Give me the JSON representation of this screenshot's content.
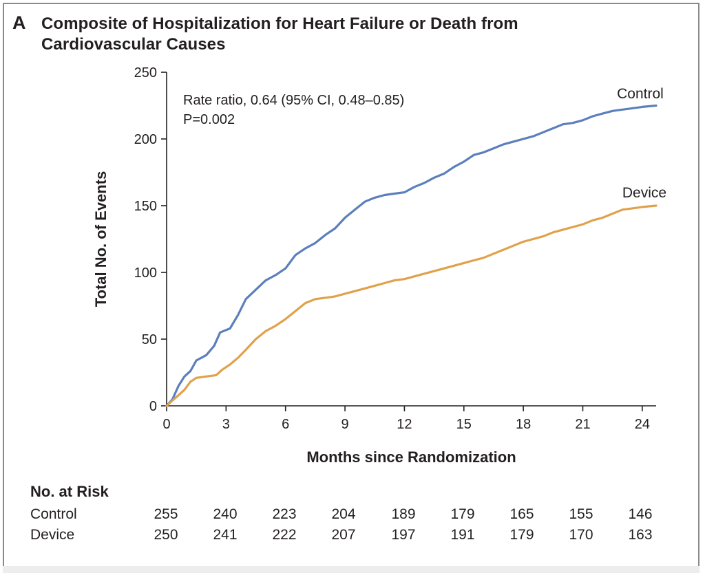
{
  "panel_label": "A",
  "chart_data": {
    "type": "line",
    "title": "Composite of Hospitalization for Heart Failure or Death from Cardiovascular Causes",
    "xlabel": "Months since Randomization",
    "ylabel": "Total No. of Events",
    "xlim": [
      0,
      24.7
    ],
    "ylim": [
      0,
      250
    ],
    "x_ticks": [
      0,
      3,
      6,
      9,
      12,
      15,
      18,
      21,
      24
    ],
    "y_ticks": [
      0,
      50,
      100,
      150,
      200,
      250
    ],
    "grid": false,
    "annotation_lines": [
      "Rate ratio, 0.64 (95% CI, 0.48–0.85)",
      "P=0.002"
    ],
    "series": [
      {
        "name": "Control",
        "color": "#5b7fbd",
        "points": [
          [
            0,
            0
          ],
          [
            0.3,
            5
          ],
          [
            0.6,
            15
          ],
          [
            0.9,
            22
          ],
          [
            1.2,
            26
          ],
          [
            1.5,
            34
          ],
          [
            2.0,
            38
          ],
          [
            2.4,
            45
          ],
          [
            2.7,
            55
          ],
          [
            3.2,
            58
          ],
          [
            3.6,
            68
          ],
          [
            4.0,
            80
          ],
          [
            4.5,
            87
          ],
          [
            5.0,
            94
          ],
          [
            5.5,
            98
          ],
          [
            6.0,
            103
          ],
          [
            6.5,
            113
          ],
          [
            7.0,
            118
          ],
          [
            7.5,
            122
          ],
          [
            8.0,
            128
          ],
          [
            8.5,
            133
          ],
          [
            9.0,
            141
          ],
          [
            9.5,
            147
          ],
          [
            10.0,
            153
          ],
          [
            10.5,
            156
          ],
          [
            11.0,
            158
          ],
          [
            11.5,
            159
          ],
          [
            12.0,
            160
          ],
          [
            12.5,
            164
          ],
          [
            13.0,
            167
          ],
          [
            13.5,
            171
          ],
          [
            14.0,
            174
          ],
          [
            14.5,
            179
          ],
          [
            15.0,
            183
          ],
          [
            15.5,
            188
          ],
          [
            16.0,
            190
          ],
          [
            16.5,
            193
          ],
          [
            17.0,
            196
          ],
          [
            17.5,
            198
          ],
          [
            18.0,
            200
          ],
          [
            18.5,
            202
          ],
          [
            19.0,
            205
          ],
          [
            19.5,
            208
          ],
          [
            20.0,
            211
          ],
          [
            20.5,
            212
          ],
          [
            21.0,
            214
          ],
          [
            21.5,
            217
          ],
          [
            22.0,
            219
          ],
          [
            22.5,
            221
          ],
          [
            23.0,
            222
          ],
          [
            23.5,
            223
          ],
          [
            24.0,
            224
          ],
          [
            24.7,
            225
          ]
        ]
      },
      {
        "name": "Device",
        "color": "#e0a14a",
        "points": [
          [
            0,
            0
          ],
          [
            0.3,
            4
          ],
          [
            0.6,
            8
          ],
          [
            0.9,
            12
          ],
          [
            1.2,
            18
          ],
          [
            1.5,
            21
          ],
          [
            2.0,
            22
          ],
          [
            2.5,
            23
          ],
          [
            2.8,
            27
          ],
          [
            3.2,
            31
          ],
          [
            3.6,
            36
          ],
          [
            4.0,
            42
          ],
          [
            4.5,
            50
          ],
          [
            5.0,
            56
          ],
          [
            5.5,
            60
          ],
          [
            6.0,
            65
          ],
          [
            6.5,
            71
          ],
          [
            7.0,
            77
          ],
          [
            7.5,
            80
          ],
          [
            8.0,
            81
          ],
          [
            8.5,
            82
          ],
          [
            9.0,
            84
          ],
          [
            9.5,
            86
          ],
          [
            10.0,
            88
          ],
          [
            10.5,
            90
          ],
          [
            11.0,
            92
          ],
          [
            11.5,
            94
          ],
          [
            12.0,
            95
          ],
          [
            12.5,
            97
          ],
          [
            13.0,
            99
          ],
          [
            13.5,
            101
          ],
          [
            14.0,
            103
          ],
          [
            14.5,
            105
          ],
          [
            15.0,
            107
          ],
          [
            15.5,
            109
          ],
          [
            16.0,
            111
          ],
          [
            16.5,
            114
          ],
          [
            17.0,
            117
          ],
          [
            17.5,
            120
          ],
          [
            18.0,
            123
          ],
          [
            18.5,
            125
          ],
          [
            19.0,
            127
          ],
          [
            19.5,
            130
          ],
          [
            20.0,
            132
          ],
          [
            20.5,
            134
          ],
          [
            21.0,
            136
          ],
          [
            21.5,
            139
          ],
          [
            22.0,
            141
          ],
          [
            22.5,
            144
          ],
          [
            23.0,
            147
          ],
          [
            23.5,
            148
          ],
          [
            24.0,
            149
          ],
          [
            24.7,
            150
          ]
        ]
      }
    ]
  },
  "risk_table": {
    "heading": "No. at Risk",
    "rows": [
      {
        "label": "Control",
        "values": [
          "255",
          "240",
          "223",
          "204",
          "189",
          "179",
          "165",
          "155",
          "146"
        ]
      },
      {
        "label": "Device",
        "values": [
          "250",
          "241",
          "222",
          "207",
          "197",
          "191",
          "179",
          "170",
          "163"
        ]
      }
    ]
  }
}
